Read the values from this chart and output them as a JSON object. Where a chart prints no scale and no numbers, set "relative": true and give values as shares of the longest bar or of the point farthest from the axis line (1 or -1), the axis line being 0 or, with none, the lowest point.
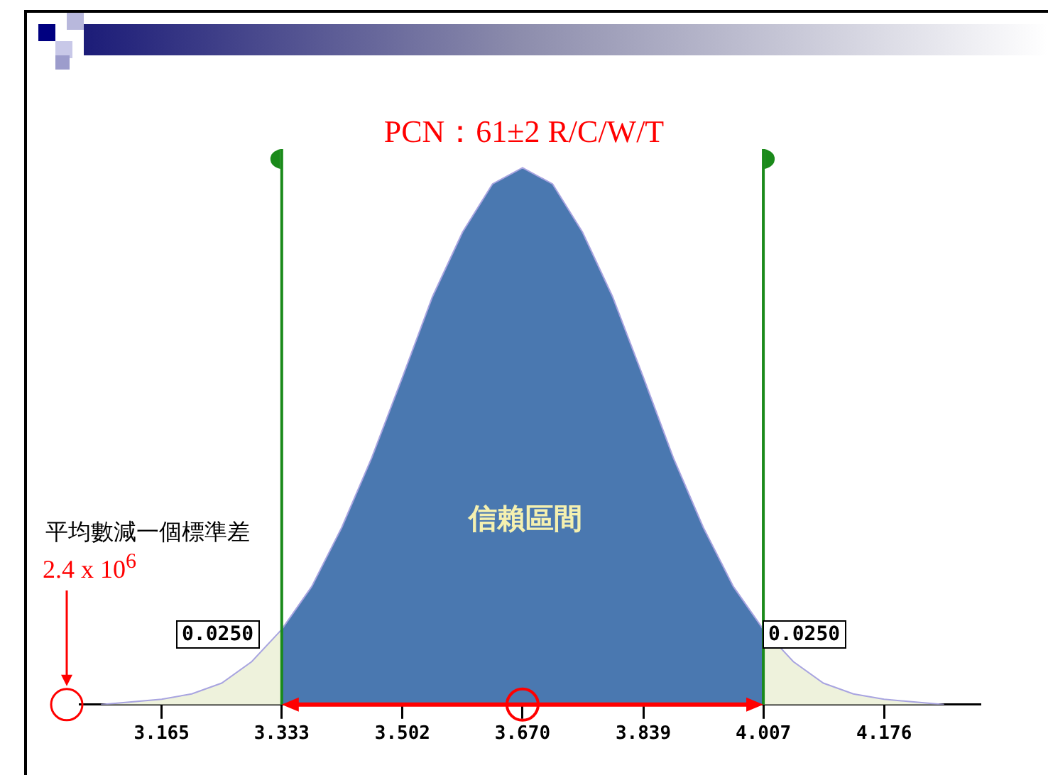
{
  "chart_data": {
    "type": "area",
    "title": "PCN：61±2 R/C/W/T",
    "relative": true,
    "xlim": [
      3.05,
      4.31
    ],
    "xticks": [
      3.165,
      3.333,
      3.502,
      {
        "value": 3.67,
        "label": "3.670"
      },
      3.839,
      4.007,
      4.176
    ],
    "series": [
      {
        "color": "#eef2dc",
        "x": [
          3.08,
          3.165,
          3.207,
          3.249,
          3.291,
          3.333
        ],
        "values": [
          0.0,
          0.01,
          0.02,
          0.04,
          0.08,
          0.14
        ]
      },
      {
        "color": "#4a78b0",
        "x": [
          3.333,
          3.375,
          3.417,
          3.459,
          3.502,
          3.544,
          3.586,
          3.628,
          3.67,
          3.712,
          3.754,
          3.796,
          3.839,
          3.881,
          3.923,
          3.965,
          4.007
        ],
        "values": [
          0.14,
          0.22,
          0.33,
          0.46,
          0.61,
          0.76,
          0.88,
          0.97,
          1.0,
          0.97,
          0.88,
          0.76,
          0.61,
          0.46,
          0.33,
          0.22,
          0.14
        ]
      },
      {
        "color": "#eef2dc",
        "x": [
          4.007,
          4.049,
          4.091,
          4.133,
          4.176,
          4.26
        ],
        "values": [
          0.14,
          0.08,
          0.04,
          0.02,
          0.01,
          0.0
        ]
      }
    ],
    "ref_lines": [
      {
        "axis": "x",
        "value": 3.333,
        "color": "#1a8a1a"
      },
      {
        "axis": "x",
        "value": 4.007,
        "color": "#1a8a1a"
      }
    ],
    "annotations": [
      "信賴區間",
      "平均數減一個標準差",
      "2.4 x 10$^{6}$",
      "0.0250",
      "0.0250"
    ],
    "grid": false,
    "legend": false
  }
}
